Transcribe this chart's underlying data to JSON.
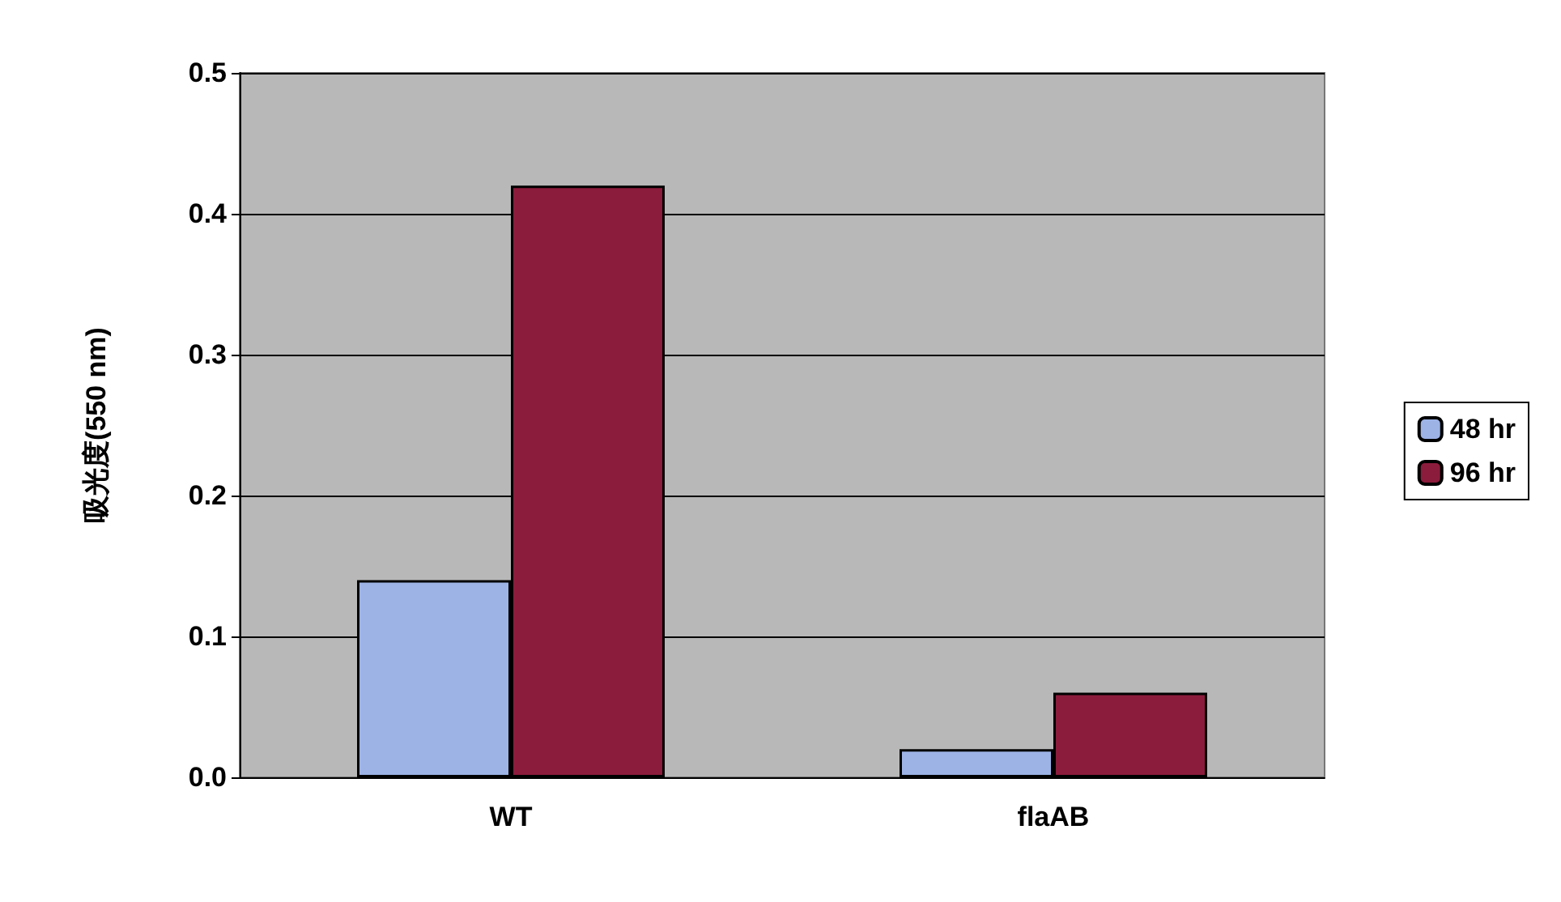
{
  "chart_data": {
    "type": "bar",
    "ylabel": "吸光度(550 nm)",
    "categories": [
      "WT",
      "flaAB"
    ],
    "series": [
      {
        "name": "48 hr",
        "color": "#9db3e6",
        "values": [
          0.14,
          0.02
        ]
      },
      {
        "name": "96 hr",
        "color": "#8c1c3c",
        "values": [
          0.42,
          0.06
        ]
      }
    ],
    "ylim": [
      0,
      0.5
    ],
    "yticks": [
      {
        "value": 0,
        "label": "0.0"
      },
      {
        "value": 0.1,
        "label": "0.1"
      },
      {
        "value": 0.2,
        "label": "0.2"
      },
      {
        "value": 0.3,
        "label": "0.3"
      },
      {
        "value": 0.4,
        "label": "0.4"
      },
      {
        "value": 0.5,
        "label": "0.5"
      }
    ],
    "grid": "y",
    "legend": "right"
  }
}
